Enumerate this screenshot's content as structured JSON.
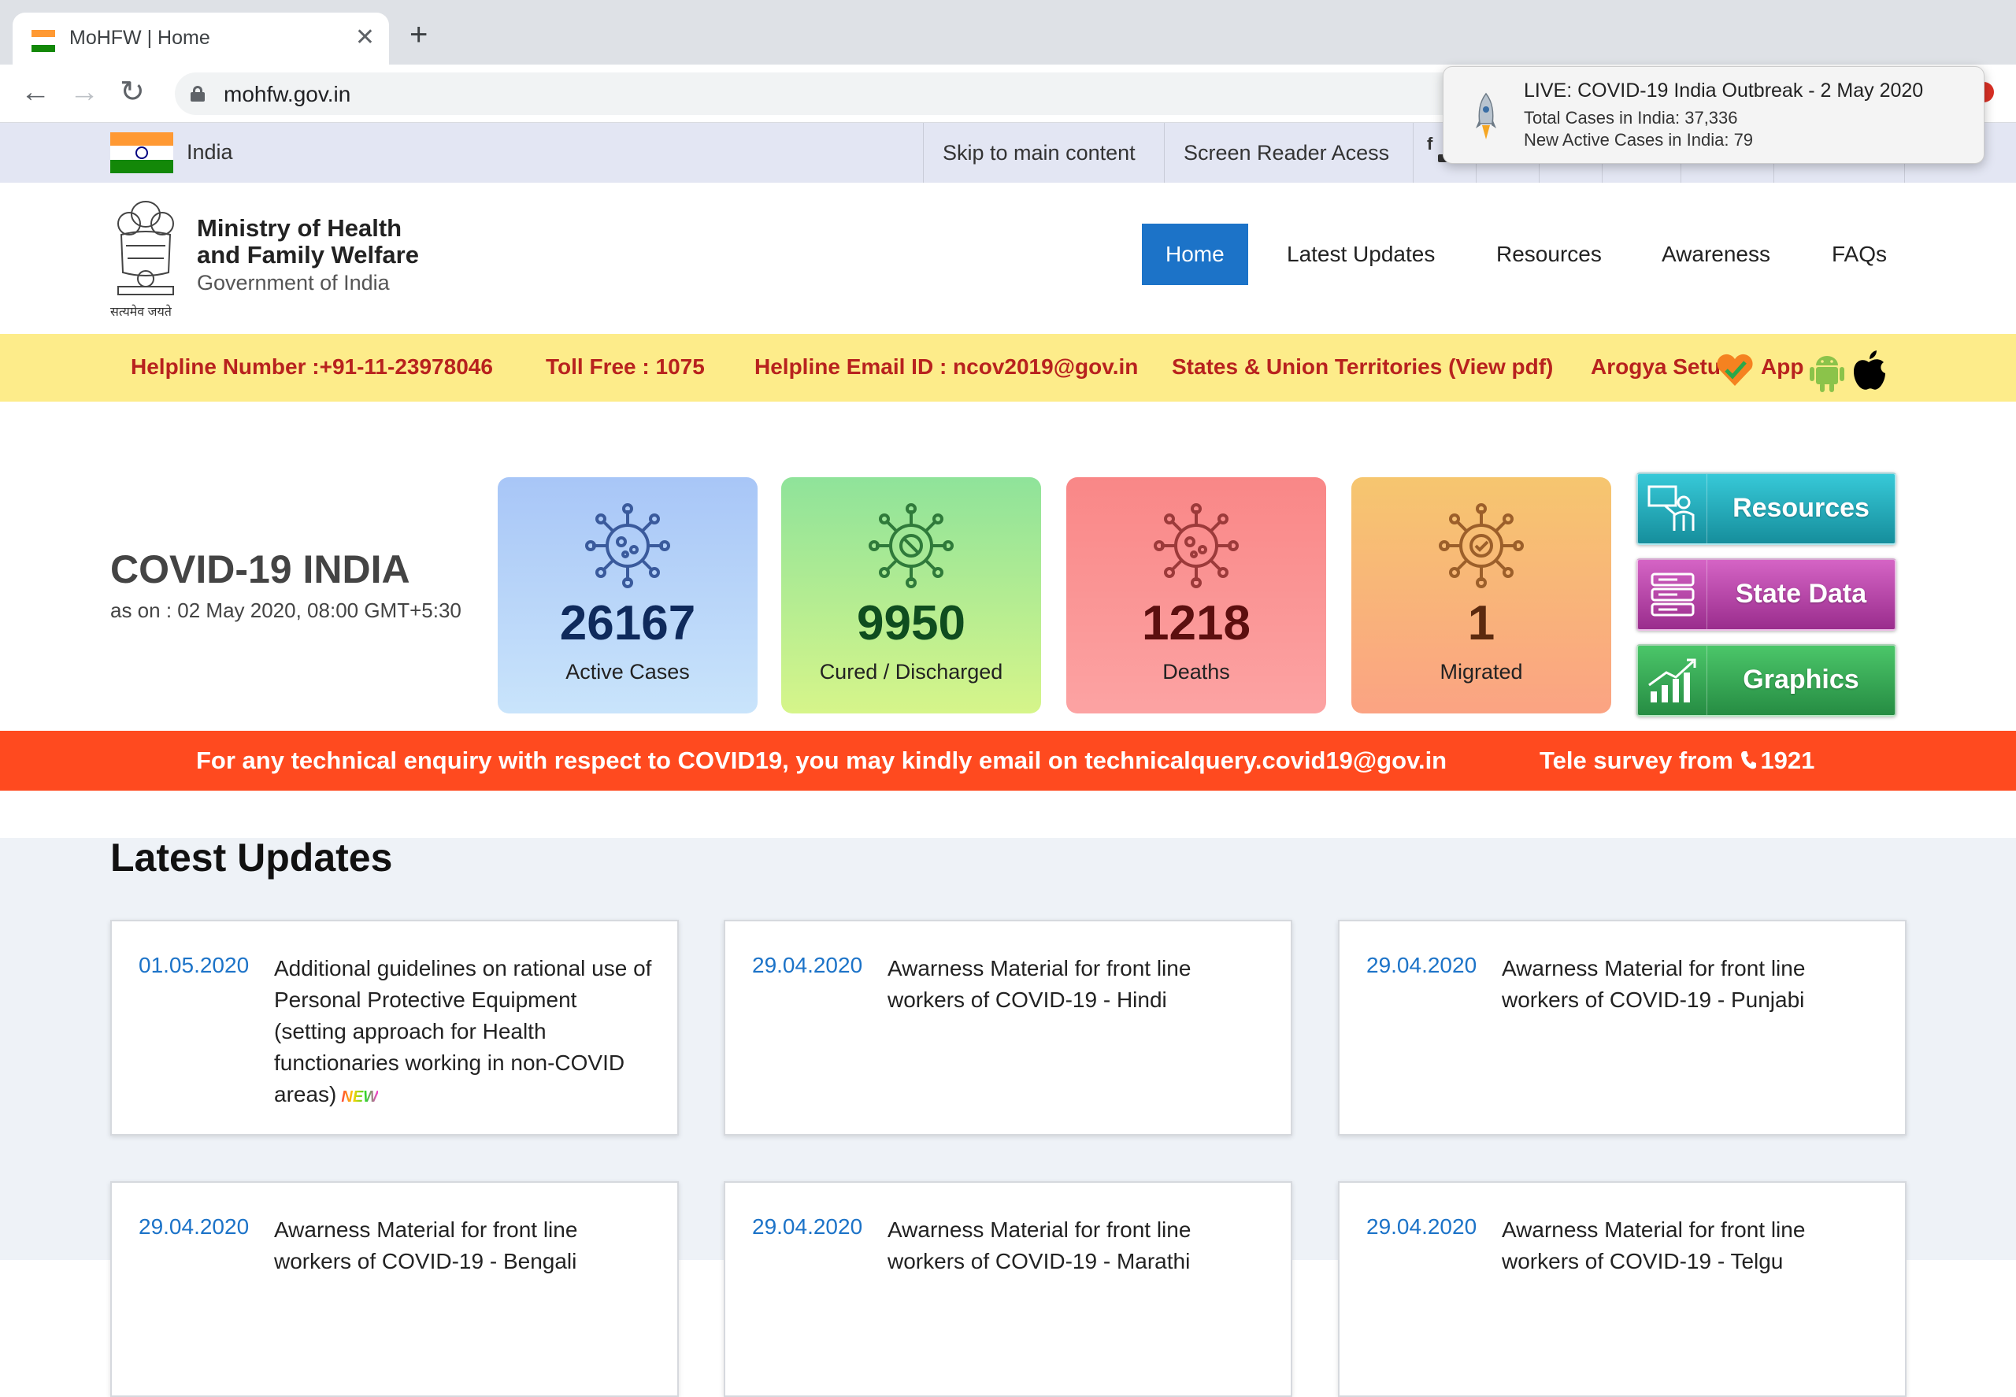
{
  "browser": {
    "tab_title": "MoHFW | Home",
    "url": "mohfw.gov.in"
  },
  "notification": {
    "title": "LIVE: COVID-19 India Outbreak - 2 May 2020",
    "line1": "Total Cases in India: 37,336",
    "line2": "New Active Cases in India: 79"
  },
  "topbar": {
    "country": "India",
    "links": [
      "Skip to main content",
      "Screen Reader Acess"
    ]
  },
  "header": {
    "emblem_caption": "सत्यमेव जयते",
    "title_line1": "Ministry of Health",
    "title_line2": "and Family Welfare",
    "subtitle": "Government of India",
    "nav": [
      "Home",
      "Latest Updates",
      "Resources",
      "Awareness",
      "FAQs"
    ],
    "active_nav": "Home"
  },
  "helpline": {
    "phone": "Helpline Number :+91-11-23978046",
    "tollfree": "Toll Free : 1075",
    "email": "Helpline Email ID : ncov2019@gov.in",
    "states": "States & Union Territories (View pdf)",
    "arogya": "Arogya Setu",
    "app": "App"
  },
  "stats": {
    "title": "COVID-19 INDIA",
    "as_on": "as on : 02 May 2020, 08:00 GMT+5:30",
    "cards": [
      {
        "value": "26167",
        "label": "Active Cases",
        "color": "#0f2a5c"
      },
      {
        "value": "9950",
        "label": "Cured / Discharged",
        "color": "#0f4d1f"
      },
      {
        "value": "1218",
        "label": "Deaths",
        "color": "#5c0f0f"
      },
      {
        "value": "1",
        "label": "Migrated",
        "color": "#5c2a0f"
      }
    ],
    "side_buttons": [
      "Resources",
      "State Data",
      "Graphics"
    ]
  },
  "notice": {
    "text": "For any technical enquiry with respect to COVID19, you may kindly email on technicalquery.covid19@gov.in",
    "tele": "Tele survey from",
    "tele_number": "1921"
  },
  "updates": {
    "title": "Latest Updates",
    "new_label": "NEW",
    "items": [
      {
        "date": "01.05.2020",
        "text": "Additional guidelines on rational use of Personal Protective Equipment (setting approach for Health functionaries working in non-COVID areas)"
      },
      {
        "date": "29.04.2020",
        "text": "Awarness Material for front line workers of COVID-19 - Hindi"
      },
      {
        "date": "29.04.2020",
        "text": "Awarness Material for front line workers of COVID-19 - Punjabi"
      },
      {
        "date": "29.04.2020",
        "text": "Awarness Material for front line workers of COVID-19 - Bengali"
      },
      {
        "date": "29.04.2020",
        "text": "Awarness Material for front line workers of COVID-19 - Marathi"
      },
      {
        "date": "29.04.2020",
        "text": "Awarness Material for front line workers of COVID-19 - Telgu"
      }
    ]
  }
}
